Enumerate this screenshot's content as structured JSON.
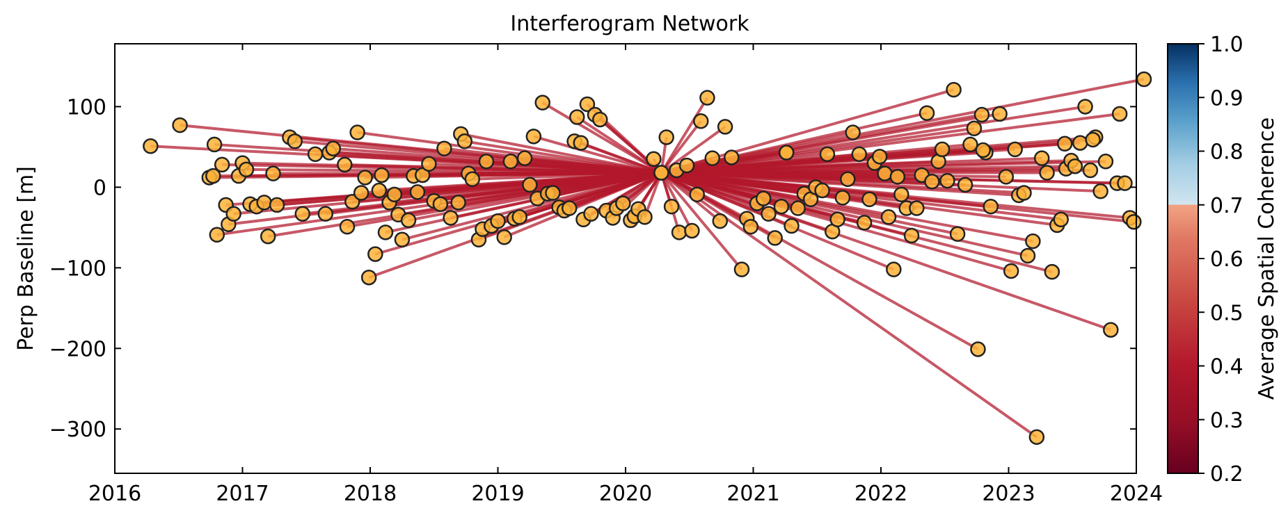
{
  "chart_data": {
    "type": "scatter",
    "title": "Interferogram Network",
    "xlabel": "",
    "ylabel": "Perp Baseline [m]",
    "xlim": [
      2016,
      2024
    ],
    "ylim": [
      -355,
      178
    ],
    "xticks": [
      2016,
      2017,
      2018,
      2019,
      2020,
      2021,
      2022,
      2023,
      2024
    ],
    "yticks": [
      100,
      0,
      -100,
      -200,
      -300
    ],
    "ytick_labels": [
      "100",
      "0",
      "−100",
      "−200",
      "−300"
    ],
    "grid": false,
    "reference_date": {
      "x": 2020.28,
      "y": 18
    },
    "edge_color": "#b2182b",
    "marker_color": "#fdb338",
    "colorbar": {
      "label": "Average Spatial Coherence",
      "range": [
        0.2,
        1.0
      ],
      "ticks": [
        "0.2",
        "0.3",
        "0.4",
        "0.5",
        "0.6",
        "0.7",
        "0.8",
        "0.9",
        "1.0"
      ],
      "colormap": "RdBu"
    },
    "acquisitions": [
      [
        2016.28,
        51
      ],
      [
        2016.51,
        77
      ],
      [
        2016.74,
        12
      ],
      [
        2016.77,
        14
      ],
      [
        2016.78,
        53
      ],
      [
        2016.8,
        -59
      ],
      [
        2016.84,
        28
      ],
      [
        2016.87,
        -22
      ],
      [
        2016.89,
        -46
      ],
      [
        2016.93,
        -33
      ],
      [
        2016.97,
        14
      ],
      [
        2017.0,
        30
      ],
      [
        2017.03,
        22
      ],
      [
        2017.06,
        -21
      ],
      [
        2017.11,
        -24
      ],
      [
        2017.17,
        -19
      ],
      [
        2017.2,
        -61
      ],
      [
        2017.24,
        17
      ],
      [
        2017.27,
        -22
      ],
      [
        2017.37,
        62
      ],
      [
        2017.41,
        57
      ],
      [
        2017.47,
        -33
      ],
      [
        2017.57,
        41
      ],
      [
        2017.65,
        -33
      ],
      [
        2017.68,
        43
      ],
      [
        2017.71,
        48
      ],
      [
        2017.8,
        28
      ],
      [
        2017.82,
        -49
      ],
      [
        2017.86,
        -18
      ],
      [
        2017.9,
        68
      ],
      [
        2017.93,
        -7
      ],
      [
        2017.96,
        12
      ],
      [
        2017.99,
        -112
      ],
      [
        2018.04,
        -83
      ],
      [
        2018.07,
        -4
      ],
      [
        2018.09,
        15
      ],
      [
        2018.12,
        -56
      ],
      [
        2018.15,
        -19
      ],
      [
        2018.19,
        -9
      ],
      [
        2018.22,
        -34
      ],
      [
        2018.25,
        -65
      ],
      [
        2018.3,
        -41
      ],
      [
        2018.34,
        14
      ],
      [
        2018.37,
        -6
      ],
      [
        2018.41,
        15
      ],
      [
        2018.46,
        29
      ],
      [
        2018.5,
        -17
      ],
      [
        2018.55,
        -21
      ],
      [
        2018.58,
        48
      ],
      [
        2018.63,
        -38
      ],
      [
        2018.69,
        -19
      ],
      [
        2018.71,
        66
      ],
      [
        2018.74,
        57
      ],
      [
        2018.77,
        17
      ],
      [
        2018.8,
        10
      ],
      [
        2018.85,
        -65
      ],
      [
        2018.88,
        -52
      ],
      [
        2018.91,
        32
      ],
      [
        2018.95,
        -48
      ],
      [
        2019.0,
        -42
      ],
      [
        2019.05,
        -62
      ],
      [
        2019.1,
        32
      ],
      [
        2019.13,
        -39
      ],
      [
        2019.17,
        -37
      ],
      [
        2019.21,
        36
      ],
      [
        2019.25,
        3
      ],
      [
        2019.28,
        63
      ],
      [
        2019.31,
        -14
      ],
      [
        2019.35,
        105
      ],
      [
        2019.39,
        -8
      ],
      [
        2019.43,
        -7
      ],
      [
        2019.48,
        -25
      ],
      [
        2019.52,
        -29
      ],
      [
        2019.56,
        -26
      ],
      [
        2019.6,
        57
      ],
      [
        2019.62,
        87
      ],
      [
        2019.65,
        55
      ],
      [
        2019.67,
        -40
      ],
      [
        2019.7,
        103
      ],
      [
        2019.73,
        -33
      ],
      [
        2019.76,
        90
      ],
      [
        2019.8,
        84
      ],
      [
        2019.85,
        -29
      ],
      [
        2019.9,
        -38
      ],
      [
        2019.93,
        -26
      ],
      [
        2019.98,
        -20
      ],
      [
        2020.04,
        -41
      ],
      [
        2020.07,
        -36
      ],
      [
        2020.1,
        -27
      ],
      [
        2020.15,
        -37
      ],
      [
        2020.22,
        35
      ],
      [
        2020.28,
        18
      ],
      [
        2020.32,
        62
      ],
      [
        2020.36,
        -24
      ],
      [
        2020.4,
        21
      ],
      [
        2020.42,
        -56
      ],
      [
        2020.48,
        27
      ],
      [
        2020.52,
        -54
      ],
      [
        2020.56,
        -9
      ],
      [
        2020.59,
        82
      ],
      [
        2020.64,
        111
      ],
      [
        2020.68,
        36
      ],
      [
        2020.74,
        -42
      ],
      [
        2020.78,
        75
      ],
      [
        2020.83,
        37
      ],
      [
        2020.91,
        -102
      ],
      [
        2020.95,
        -39
      ],
      [
        2020.98,
        -49
      ],
      [
        2021.03,
        -20
      ],
      [
        2021.08,
        -14
      ],
      [
        2021.12,
        -33
      ],
      [
        2021.17,
        -63
      ],
      [
        2021.22,
        -24
      ],
      [
        2021.26,
        43
      ],
      [
        2021.3,
        -48
      ],
      [
        2021.35,
        -26
      ],
      [
        2021.4,
        -8
      ],
      [
        2021.45,
        -15
      ],
      [
        2021.49,
        0
      ],
      [
        2021.54,
        -4
      ],
      [
        2021.58,
        41
      ],
      [
        2021.62,
        -55
      ],
      [
        2021.66,
        -40
      ],
      [
        2021.7,
        -13
      ],
      [
        2021.74,
        10
      ],
      [
        2021.78,
        68
      ],
      [
        2021.83,
        41
      ],
      [
        2021.87,
        -44
      ],
      [
        2021.91,
        -15
      ],
      [
        2021.95,
        30
      ],
      [
        2021.99,
        38
      ],
      [
        2022.03,
        17
      ],
      [
        2022.06,
        -37
      ],
      [
        2022.1,
        -102
      ],
      [
        2022.13,
        13
      ],
      [
        2022.16,
        -9
      ],
      [
        2022.2,
        -26
      ],
      [
        2022.24,
        -60
      ],
      [
        2022.28,
        -26
      ],
      [
        2022.32,
        15
      ],
      [
        2022.36,
        92
      ],
      [
        2022.4,
        7
      ],
      [
        2022.45,
        32
      ],
      [
        2022.48,
        47
      ],
      [
        2022.52,
        8
      ],
      [
        2022.57,
        121
      ],
      [
        2022.6,
        -58
      ],
      [
        2022.66,
        3
      ],
      [
        2022.7,
        53
      ],
      [
        2022.73,
        73
      ],
      [
        2022.76,
        -201
      ],
      [
        2022.79,
        90
      ],
      [
        2022.82,
        43
      ],
      [
        2022.86,
        -24
      ],
      [
        2022.93,
        91
      ],
      [
        2022.98,
        13
      ],
      [
        2023.02,
        -104
      ],
      [
        2023.05,
        47
      ],
      [
        2023.08,
        -10
      ],
      [
        2023.12,
        -7
      ],
      [
        2023.15,
        -85
      ],
      [
        2023.19,
        -67
      ],
      [
        2023.22,
        -310
      ],
      [
        2023.26,
        36
      ],
      [
        2023.3,
        18
      ],
      [
        2023.34,
        -105
      ],
      [
        2023.38,
        -47
      ],
      [
        2023.41,
        -40
      ],
      [
        2023.45,
        23
      ],
      [
        2023.49,
        33
      ],
      [
        2023.52,
        26
      ],
      [
        2023.56,
        55
      ],
      [
        2023.6,
        100
      ],
      [
        2023.64,
        21
      ],
      [
        2023.68,
        62
      ],
      [
        2023.72,
        -5
      ],
      [
        2023.76,
        32
      ],
      [
        2023.8,
        -177
      ],
      [
        2023.85,
        5
      ],
      [
        2023.87,
        91
      ],
      [
        2023.91,
        5
      ],
      [
        2023.95,
        -38
      ],
      [
        2023.98,
        -43
      ],
      [
        2024.06,
        134
      ],
      [
        2023.44,
        54
      ],
      [
        2023.66,
        59
      ],
      [
        2022.8,
        46
      ],
      [
        2021.26,
        43
      ]
    ]
  }
}
